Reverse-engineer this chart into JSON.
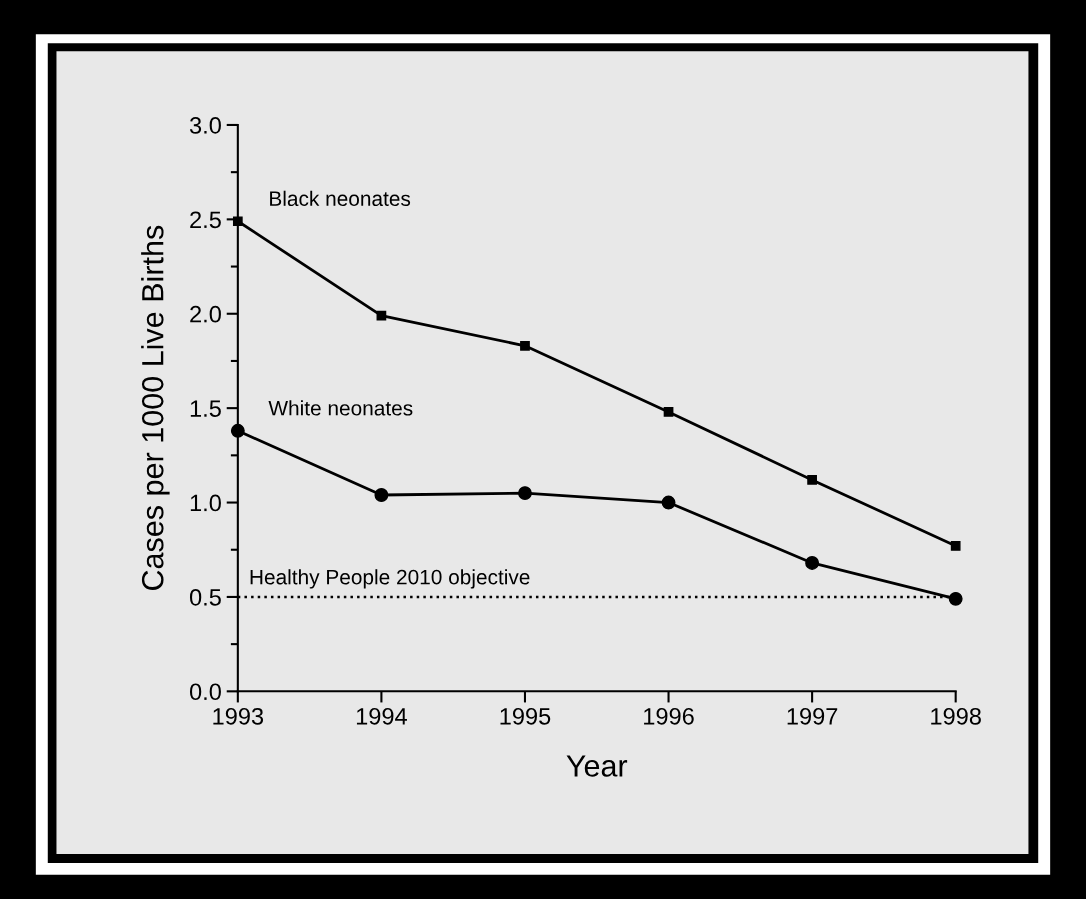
{
  "chart_data": {
    "type": "line",
    "xlabel": "Year",
    "ylabel": "Cases per 1000 Live Births",
    "x": [
      1993,
      1994,
      1995,
      1996,
      1997,
      1998
    ],
    "series": [
      {
        "name": "Black neonates",
        "color": "#000000",
        "marker": "square",
        "values": [
          2.49,
          1.99,
          1.83,
          1.48,
          1.12,
          0.77
        ]
      },
      {
        "name": "White neonates",
        "color": "#000000",
        "marker": "circle",
        "values": [
          1.38,
          1.04,
          1.05,
          1.0,
          0.68,
          0.49
        ]
      }
    ],
    "xlim": [
      1993,
      1998
    ],
    "xticks": [
      1993,
      1994,
      1995,
      1996,
      1997,
      1998
    ],
    "ylim": [
      0,
      3.0
    ],
    "yticks": [
      {
        "value": 0,
        "label": "0.0"
      },
      {
        "value": 0.5,
        "label": "0.5"
      },
      {
        "value": 1.0,
        "label": "1.0"
      },
      {
        "value": 1.5,
        "label": "1.5"
      },
      {
        "value": 2.0,
        "label": "2.0"
      },
      {
        "value": 2.5,
        "label": "2.5"
      },
      {
        "value": 3.0,
        "label": "3.0"
      }
    ],
    "ref_lines": [
      {
        "axis": "y",
        "value": 0.5,
        "label": "Healthy People 2010 objective",
        "color": "#000000",
        "line_style": "dotted"
      }
    ],
    "grid": false,
    "legend": false,
    "line_style": "solid"
  }
}
